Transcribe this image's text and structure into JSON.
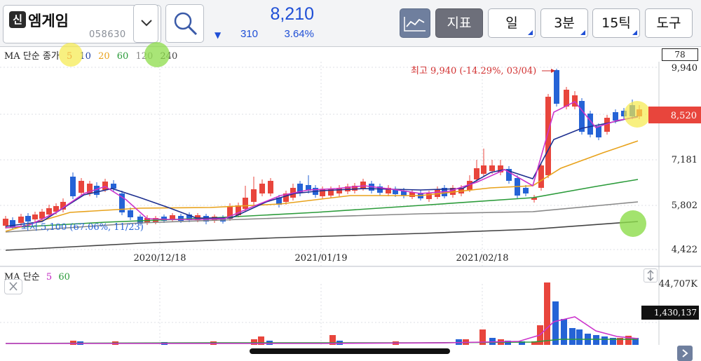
{
  "header": {
    "badge": "신",
    "stock_name": "엠게임",
    "stock_code": "058630",
    "price": "8,210",
    "change_arrow": "▼",
    "change_value": "310",
    "change_percent": "3.64%",
    "buttons": {
      "indicator": "지표",
      "period": "일",
      "minute": "3분",
      "tick": "15틱",
      "tools": "도구"
    }
  },
  "ma_legend": {
    "prefix": "MA 단순 종가",
    "periods": [
      {
        "label": "5",
        "color": "#e03a3a"
      },
      {
        "label": "10",
        "color": "#1d3fa0"
      },
      {
        "label": "20",
        "color": "#e8a21b"
      },
      {
        "label": "60",
        "color": "#2b9b3a"
      },
      {
        "label": "120",
        "color": "#888888"
      },
      {
        "label": "240",
        "color": "#444444"
      }
    ]
  },
  "axis_top_value": "78",
  "price_axis": [
    "9,940",
    "8,520",
    "7,181",
    "5,802",
    "4,422"
  ],
  "current_price_tag": "8,520",
  "date_labels": [
    "2020/12/18",
    "2021/01/19",
    "2021/02/18"
  ],
  "annotations": {
    "high": "최고 9,940 (-14.29%, 03/04)",
    "low": "최저 5,100 (67.06%, 11/23)"
  },
  "volume": {
    "legend_prefix": "MA 단순",
    "legend_periods": [
      {
        "label": "5",
        "color": "#c026c0"
      },
      {
        "label": "60",
        "color": "#2b9b3a"
      }
    ],
    "axis_max": "44,707K",
    "current_value": "1,430,137"
  },
  "colors": {
    "up": "#e8453c",
    "down": "#2563d6",
    "ma5": "#cc33cc",
    "ma10": "#1d2f8f",
    "ma20": "#e8a21b",
    "ma60": "#2b9b3a",
    "ma120": "#888888",
    "ma240": "#444444",
    "price_blue": "#1f4fd6",
    "price_tag": "#e8453c"
  },
  "chart_data": {
    "type": "candlestick",
    "y_axis_ticks": [
      9940,
      8520,
      7181,
      5802,
      4422
    ],
    "x_axis_ticks": [
      "2020/12/18",
      "2021/01/19",
      "2021/02/18"
    ],
    "high": 9940,
    "low": 5100,
    "last": 8520
  }
}
